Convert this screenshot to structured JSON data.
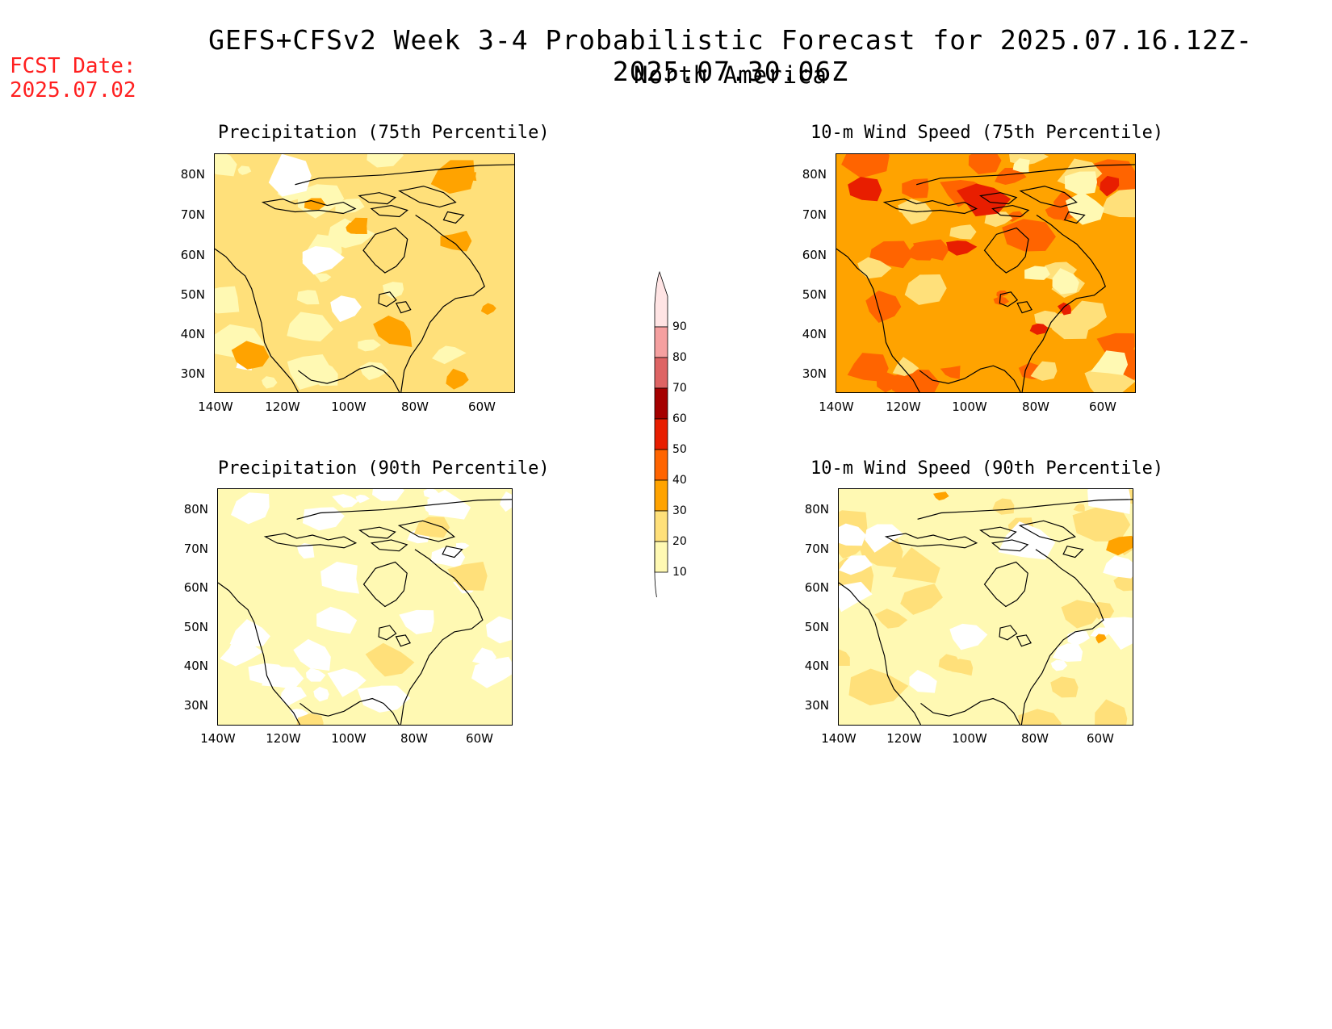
{
  "header": {
    "title": "GEFS+CFSv2 Week 3-4 Probabilistic Forecast for 2025.07.16.12Z-2025.07.30.06Z",
    "subtitle": "North America",
    "fcst_label": "FCST Date:",
    "fcst_value": "2025.07.02"
  },
  "panels": [
    {
      "title": "Precipitation (75th Percentile)",
      "level": "moderate"
    },
    {
      "title": "10-m Wind Speed (75th Percentile)",
      "level": "high"
    },
    {
      "title": "Precipitation (90th Percentile)",
      "level": "low"
    },
    {
      "title": "10-m Wind Speed (90th Percentile)",
      "level": "low-mid"
    }
  ],
  "axes": {
    "lat_labels": [
      "80N",
      "70N",
      "60N",
      "50N",
      "40N",
      "30N"
    ],
    "lon_labels": [
      "140W",
      "120W",
      "100W",
      "80W",
      "60W"
    ]
  },
  "colorbar": {
    "levels": [
      "10",
      "20",
      "30",
      "40",
      "50",
      "60",
      "70",
      "80",
      "90"
    ],
    "colors": [
      "#fff9b3",
      "#ffe07a",
      "#ffa300",
      "#ff6400",
      "#e81e00",
      "#a50000",
      "#de6464",
      "#f5a0a0",
      "#ffe4e4"
    ]
  }
}
